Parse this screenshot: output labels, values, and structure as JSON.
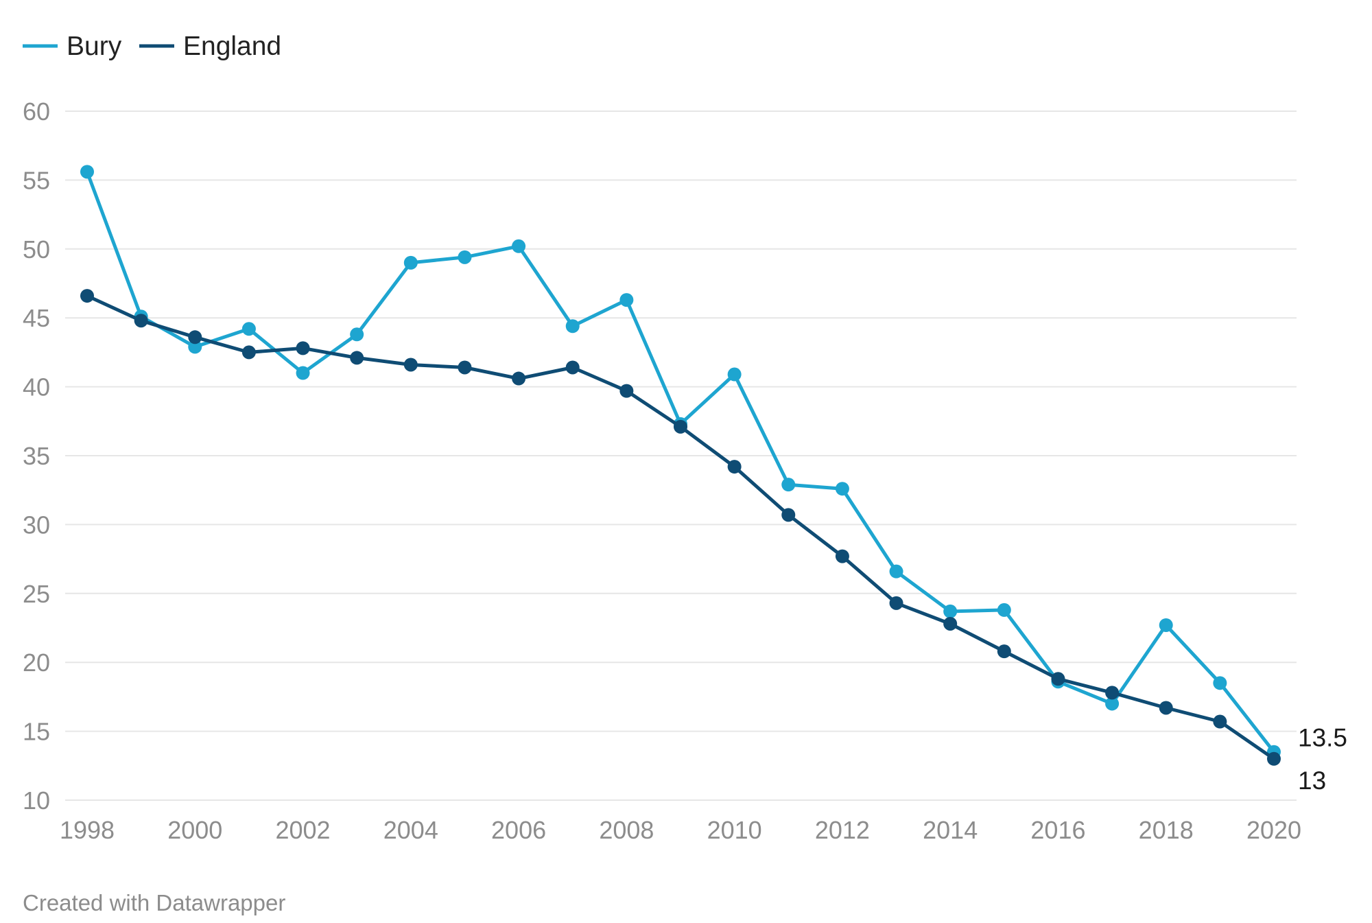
{
  "legend": [
    {
      "label": "Bury",
      "color": "#1ea5d0"
    },
    {
      "label": "England",
      "color": "#0f4c74"
    }
  ],
  "credit": "Created with Datawrapper",
  "chart_data": {
    "type": "line",
    "x": [
      1998,
      1999,
      2000,
      2001,
      2002,
      2003,
      2004,
      2005,
      2006,
      2007,
      2008,
      2009,
      2010,
      2011,
      2012,
      2013,
      2014,
      2015,
      2016,
      2017,
      2018,
      2019,
      2020
    ],
    "series": [
      {
        "name": "Bury",
        "color": "#1ea5d0",
        "values": [
          55.6,
          45.1,
          42.9,
          44.2,
          41.0,
          43.8,
          49.0,
          49.4,
          50.2,
          44.4,
          46.3,
          37.3,
          40.9,
          32.9,
          32.6,
          26.6,
          23.7,
          23.8,
          18.6,
          17.0,
          22.7,
          18.5,
          13.5
        ],
        "end_label": "13.5"
      },
      {
        "name": "England",
        "color": "#0f4c74",
        "values": [
          46.6,
          44.8,
          43.6,
          42.5,
          42.8,
          42.1,
          41.6,
          41.4,
          40.6,
          41.4,
          39.7,
          37.1,
          34.2,
          30.7,
          27.7,
          24.3,
          22.8,
          20.8,
          18.8,
          17.8,
          16.7,
          15.7,
          13.0
        ],
        "end_label": "13"
      }
    ],
    "ylim": [
      10,
      60
    ],
    "yticks": [
      "10",
      "15",
      "20",
      "25",
      "30",
      "35",
      "40",
      "45",
      "50",
      "55",
      "60"
    ],
    "xticks": [
      "1998",
      "2000",
      "2002",
      "2004",
      "2006",
      "2008",
      "2010",
      "2012",
      "2014",
      "2016",
      "2018",
      "2020"
    ],
    "grid": true,
    "legend_position": "top-left"
  }
}
